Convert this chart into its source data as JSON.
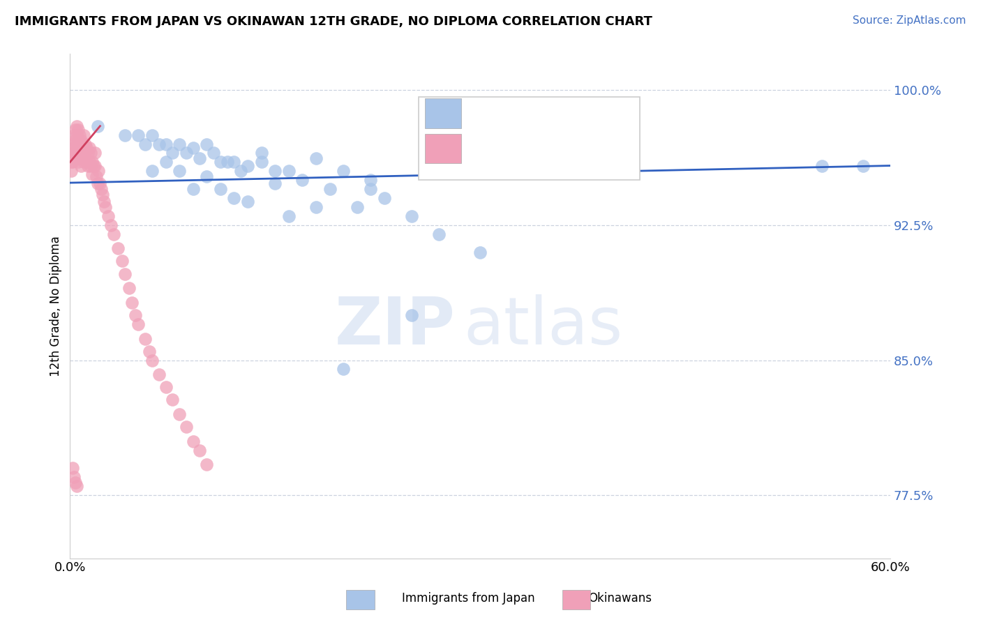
{
  "title": "IMMIGRANTS FROM JAPAN VS OKINAWAN 12TH GRADE, NO DIPLOMA CORRELATION CHART",
  "source": "Source: ZipAtlas.com",
  "ylabel": "12th Grade, No Diploma",
  "xlim": [
    0.0,
    0.6
  ],
  "ylim": [
    0.74,
    1.02
  ],
  "yticks": [
    0.775,
    0.85,
    0.925,
    1.0
  ],
  "ytick_labels": [
    "77.5%",
    "85.0%",
    "92.5%",
    "100.0%"
  ],
  "xticks": [
    0.0,
    0.1,
    0.2,
    0.3,
    0.4,
    0.5,
    0.6
  ],
  "xtick_labels": [
    "0.0%",
    "",
    "",
    "",
    "",
    "",
    "60.0%"
  ],
  "blue_color": "#a8c4e8",
  "pink_color": "#f0a0b8",
  "trend_blue_color": "#3060c0",
  "trend_pink_color": "#d04060",
  "watermark_zip": "ZIP",
  "watermark_atlas": "atlas",
  "blue_scatter_x": [
    0.02,
    0.04,
    0.05,
    0.055,
    0.06,
    0.065,
    0.07,
    0.075,
    0.08,
    0.085,
    0.09,
    0.095,
    0.1,
    0.105,
    0.11,
    0.115,
    0.12,
    0.125,
    0.13,
    0.14,
    0.15,
    0.16,
    0.17,
    0.18,
    0.19,
    0.2,
    0.21,
    0.22,
    0.23,
    0.25,
    0.27,
    0.3,
    0.55,
    0.58,
    0.06,
    0.07,
    0.08,
    0.09,
    0.1,
    0.11,
    0.12,
    0.13,
    0.14,
    0.15,
    0.16,
    0.18,
    0.2,
    0.22,
    0.25
  ],
  "blue_scatter_y": [
    0.98,
    0.975,
    0.975,
    0.97,
    0.975,
    0.97,
    0.97,
    0.965,
    0.97,
    0.965,
    0.968,
    0.962,
    0.97,
    0.965,
    0.96,
    0.96,
    0.96,
    0.955,
    0.958,
    0.965,
    0.955,
    0.955,
    0.95,
    0.962,
    0.945,
    0.955,
    0.935,
    0.95,
    0.94,
    0.93,
    0.92,
    0.91,
    0.958,
    0.958,
    0.955,
    0.96,
    0.955,
    0.945,
    0.952,
    0.945,
    0.94,
    0.938,
    0.96,
    0.948,
    0.93,
    0.935,
    0.845,
    0.945,
    0.875
  ],
  "pink_scatter_x": [
    0.001,
    0.001,
    0.002,
    0.002,
    0.002,
    0.003,
    0.003,
    0.003,
    0.004,
    0.004,
    0.004,
    0.005,
    0.005,
    0.005,
    0.005,
    0.006,
    0.006,
    0.006,
    0.006,
    0.007,
    0.007,
    0.007,
    0.008,
    0.008,
    0.008,
    0.009,
    0.009,
    0.01,
    0.01,
    0.01,
    0.011,
    0.011,
    0.012,
    0.012,
    0.013,
    0.013,
    0.014,
    0.014,
    0.015,
    0.015,
    0.016,
    0.016,
    0.017,
    0.018,
    0.018,
    0.019,
    0.02,
    0.021,
    0.022,
    0.023,
    0.024,
    0.025,
    0.026,
    0.028,
    0.03,
    0.032,
    0.035,
    0.038,
    0.04,
    0.043,
    0.045,
    0.048,
    0.05,
    0.055,
    0.058,
    0.06,
    0.065,
    0.07,
    0.075,
    0.08,
    0.085,
    0.09,
    0.095,
    0.1,
    0.002,
    0.003,
    0.004,
    0.005
  ],
  "pink_scatter_y": [
    0.96,
    0.955,
    0.97,
    0.965,
    0.96,
    0.975,
    0.968,
    0.962,
    0.978,
    0.972,
    0.965,
    0.98,
    0.975,
    0.97,
    0.965,
    0.978,
    0.972,
    0.965,
    0.96,
    0.975,
    0.968,
    0.962,
    0.972,
    0.965,
    0.958,
    0.97,
    0.963,
    0.975,
    0.968,
    0.96,
    0.97,
    0.963,
    0.968,
    0.96,
    0.965,
    0.958,
    0.968,
    0.96,
    0.965,
    0.958,
    0.96,
    0.953,
    0.958,
    0.965,
    0.958,
    0.952,
    0.948,
    0.955,
    0.948,
    0.945,
    0.942,
    0.938,
    0.935,
    0.93,
    0.925,
    0.92,
    0.912,
    0.905,
    0.898,
    0.89,
    0.882,
    0.875,
    0.87,
    0.862,
    0.855,
    0.85,
    0.842,
    0.835,
    0.828,
    0.82,
    0.813,
    0.805,
    0.8,
    0.792,
    0.79,
    0.785,
    0.782,
    0.78
  ],
  "blue_trend_x": [
    0.0,
    0.6
  ],
  "blue_trend_y": [
    0.9485,
    0.958
  ],
  "pink_trend_x": [
    0.0,
    0.022
  ],
  "pink_trend_y": [
    0.96,
    0.98
  ]
}
